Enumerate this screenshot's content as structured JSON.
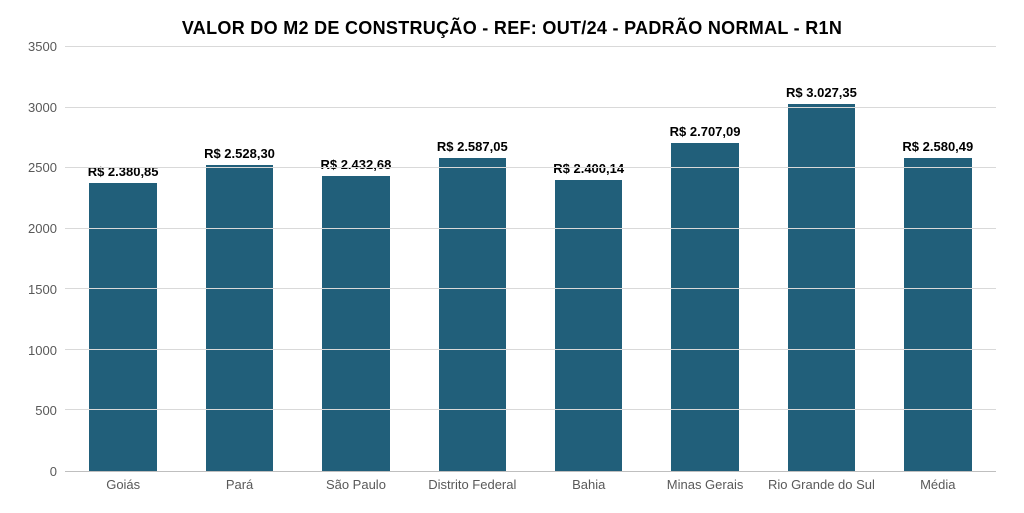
{
  "chart": {
    "type": "bar",
    "title": "VALOR DO M2 DE CONSTRUÇÃO - REF: OUT/24 - PADRÃO NORMAL - R1N",
    "title_fontsize": 18,
    "title_weight": 700,
    "title_color": "#000000",
    "background_color": "#ffffff",
    "grid_color": "#d9d9d9",
    "axis_line_color": "#bfbfbf",
    "tick_font_color": "#595959",
    "tick_fontsize": 13,
    "data_label_fontsize": 13,
    "data_label_color": "#000000",
    "data_label_weight": 700,
    "data_label_prefix": "R$ ",
    "bar_color": "#215f7a",
    "bar_width_ratio": 0.58,
    "ylim": [
      0,
      3500
    ],
    "ytick_step": 500,
    "yticks": [
      "0",
      "500",
      "1000",
      "1500",
      "2000",
      "2500",
      "3000",
      "3500"
    ],
    "categories": [
      "Goiás",
      "Pará",
      "São Paulo",
      "Distrito Federal",
      "Bahia",
      "Minas Gerais",
      "Rio Grande do Sul",
      "Média"
    ],
    "values": [
      2380.85,
      2528.3,
      2432.68,
      2587.05,
      2400.14,
      2707.09,
      3027.35,
      2580.49
    ],
    "value_labels": [
      "2.380,85",
      "2.528,30",
      "2.432,68",
      "2.587,05",
      "2.400,14",
      "2.707,09",
      "3.027,35",
      "2.580,49"
    ]
  }
}
